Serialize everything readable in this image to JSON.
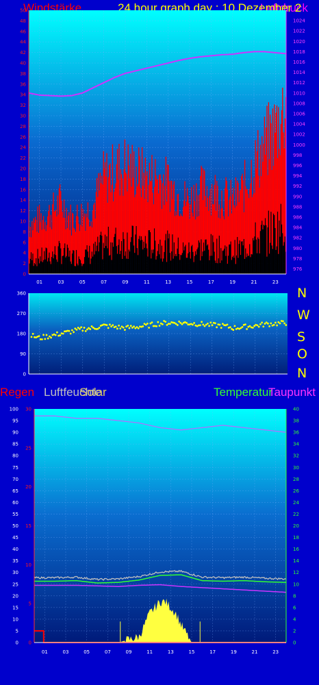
{
  "header": {
    "wind_label": "Windstärke",
    "graph_title": "24 hour graph day : 10 Dezember 2",
    "pressure_label_overlay": "Luftdruck"
  },
  "compass": [
    "N",
    "W",
    "S",
    "O",
    "N"
  ],
  "bottom_labels": {
    "rain": "Regen",
    "humidity": "Luftfeuchte",
    "solar": "Solar",
    "temperature": "Temperatur",
    "dewpoint": "Taupunkt"
  },
  "colors": {
    "background": "#0000cc",
    "wind": "#ff0000",
    "gust": "#000000",
    "pressure": "#cc33ff",
    "direction": "#ffff00",
    "temperature": "#33ff33",
    "dewpoint": "#cc33ff",
    "humidity": "#c0c0c0",
    "solar": "#ffff40",
    "rain": "#ff0000"
  },
  "chart_data": [
    {
      "type": "line",
      "title": "24 hour graph day : 10 Dezember 2",
      "x_ticks": [
        "01",
        "03",
        "05",
        "07",
        "09",
        "11",
        "13",
        "15",
        "17",
        "19",
        "21",
        "23"
      ],
      "ylim_left": [
        0,
        50
      ],
      "yticks_left": [
        0,
        2,
        4,
        6,
        8,
        10,
        12,
        14,
        16,
        18,
        20,
        22,
        24,
        26,
        28,
        30,
        32,
        34,
        36,
        38,
        40,
        42,
        44,
        46,
        48,
        50
      ],
      "ylim_right": [
        975,
        1026
      ],
      "yticks_right": [
        976,
        978,
        980,
        982,
        984,
        986,
        988,
        990,
        992,
        994,
        996,
        998,
        1000,
        1002,
        1004,
        1006,
        1008,
        1010,
        1012,
        1014,
        1016,
        1018,
        1020,
        1022,
        1024
      ],
      "series": [
        {
          "name": "Windstärke",
          "hours": [
            0,
            1,
            2,
            3,
            4,
            5,
            6,
            7,
            8,
            9,
            10,
            11,
            12,
            13,
            14,
            15,
            16,
            17,
            18,
            19,
            20,
            21,
            22,
            23,
            24
          ],
          "values": [
            8,
            9,
            10,
            12,
            9,
            10,
            11,
            16,
            17,
            18,
            17,
            16,
            16,
            15,
            13,
            12,
            14,
            14,
            13,
            12,
            14,
            18,
            21,
            24,
            28
          ]
        },
        {
          "name": "Luftdruck",
          "hours": [
            0,
            1,
            2,
            3,
            4,
            5,
            6,
            7,
            8,
            9,
            10,
            11,
            12,
            13,
            14,
            15,
            16,
            17,
            18,
            19,
            20,
            21,
            22,
            23,
            24
          ],
          "values": [
            1010,
            1009.6,
            1009.5,
            1009.4,
            1009.5,
            1010,
            1011,
            1012,
            1013,
            1013.8,
            1014.3,
            1014.8,
            1015.3,
            1015.8,
            1016.3,
            1016.7,
            1017,
            1017.2,
            1017.4,
            1017.5,
            1017.8,
            1018,
            1018,
            1017.8,
            1017.6
          ]
        }
      ],
      "grid": true
    },
    {
      "type": "scatter",
      "x_ticks": [],
      "ylim": [
        0,
        360
      ],
      "yticks": [
        0,
        90,
        180,
        270,
        360
      ],
      "series": [
        {
          "name": "direction",
          "hours": [
            0,
            1,
            2,
            3,
            4,
            5,
            6,
            7,
            8,
            9,
            10,
            11,
            12,
            13,
            14,
            15,
            16,
            17,
            18,
            19,
            20,
            21,
            22,
            23,
            24
          ],
          "values": [
            175,
            160,
            170,
            180,
            190,
            200,
            205,
            215,
            210,
            205,
            210,
            215,
            225,
            228,
            228,
            226,
            222,
            218,
            215,
            205,
            210,
            215,
            222,
            225,
            228
          ]
        }
      ],
      "grid": true
    },
    {
      "type": "line",
      "x_ticks": [
        "01",
        "03",
        "05",
        "07",
        "09",
        "11",
        "13",
        "15",
        "17",
        "19",
        "21",
        "23"
      ],
      "ylim_rain": [
        0,
        30
      ],
      "yticks_rain": [
        0,
        5,
        10,
        15,
        20,
        25,
        30
      ],
      "ylim_humidity": [
        0,
        100
      ],
      "yticks_humidity": [
        0,
        5,
        10,
        15,
        20,
        25,
        30,
        35,
        40,
        45,
        50,
        55,
        60,
        65,
        70,
        75,
        80,
        85,
        90,
        95,
        100
      ],
      "ylim_temperature": [
        0,
        40
      ],
      "yticks_temperature": [
        0,
        2,
        4,
        6,
        8,
        10,
        12,
        14,
        16,
        18,
        20,
        22,
        24,
        26,
        28,
        30,
        32,
        34,
        36,
        38,
        40
      ],
      "series": [
        {
          "name": "Luftfeuchte",
          "hours": [
            0,
            2,
            4,
            6,
            8,
            10,
            12,
            14,
            16,
            18,
            20,
            22,
            24
          ],
          "values": [
            97,
            97,
            96,
            96,
            95,
            94,
            92,
            91,
            92,
            93,
            92,
            91,
            90
          ]
        },
        {
          "name": "Temperatur",
          "hours": [
            0,
            2,
            4,
            6,
            8,
            10,
            12,
            14,
            16,
            18,
            20,
            22,
            24
          ],
          "values": [
            10.5,
            10.5,
            10.6,
            10.2,
            10.3,
            10.7,
            11.5,
            11.6,
            10.6,
            10.5,
            10.6,
            10.4,
            10.3
          ]
        },
        {
          "name": "Taupunkt",
          "hours": [
            0,
            2,
            4,
            6,
            8,
            10,
            12,
            14,
            16,
            18,
            20,
            22,
            24
          ],
          "values": [
            9.8,
            9.8,
            9.8,
            9.7,
            9.6,
            9.8,
            9.9,
            9.6,
            9.4,
            9.2,
            9,
            8.8,
            8.6
          ]
        },
        {
          "name": "Solar",
          "hours": [
            0,
            2,
            4,
            6,
            8,
            10,
            10.5,
            11,
            11.5,
            12,
            12.5,
            13,
            13.5,
            14,
            15,
            16,
            18,
            20,
            22,
            24
          ],
          "values": [
            0,
            0,
            0,
            0,
            0,
            1,
            3,
            5,
            6,
            7,
            7,
            6,
            5,
            3,
            0,
            0,
            0,
            0,
            0,
            0
          ]
        },
        {
          "name": "Regen",
          "hours": [
            0,
            0.9,
            1,
            24
          ],
          "values": [
            1.5,
            1.5,
            0,
            0
          ]
        }
      ],
      "grid": true
    }
  ]
}
